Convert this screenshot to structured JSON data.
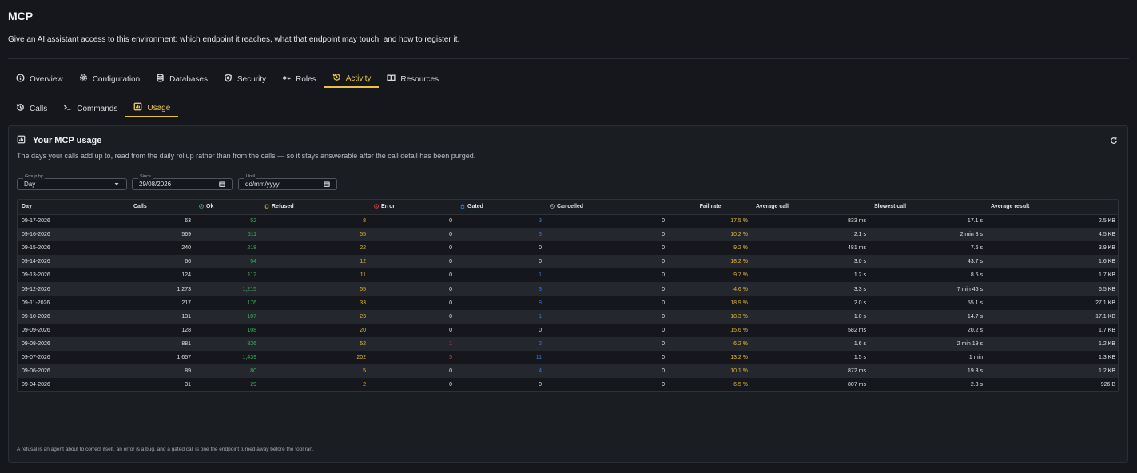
{
  "header": {
    "title": "MCP",
    "description": "Give an AI assistant access to this environment: which endpoint it reaches, what that endpoint may touch, and how to register it."
  },
  "tabs": [
    {
      "label": "Overview",
      "icon": "info-icon",
      "active": false
    },
    {
      "label": "Configuration",
      "icon": "gear-icon",
      "active": false
    },
    {
      "label": "Databases",
      "icon": "database-icon",
      "active": false
    },
    {
      "label": "Security",
      "icon": "shield-icon",
      "active": false
    },
    {
      "label": "Roles",
      "icon": "roles-icon",
      "active": false
    },
    {
      "label": "Activity",
      "icon": "history-icon",
      "active": true
    },
    {
      "label": "Resources",
      "icon": "book-icon",
      "active": false
    }
  ],
  "subtabs": [
    {
      "label": "Calls",
      "icon": "history-icon",
      "active": false
    },
    {
      "label": "Commands",
      "icon": "terminal-icon",
      "active": false
    },
    {
      "label": "Usage",
      "icon": "chart-icon",
      "active": true
    }
  ],
  "panel": {
    "title": "Your MCP usage",
    "description": "The days your calls add up to, read from the daily rollup rather than from the calls — so it stays answerable after the call detail has been purged.",
    "footnote": "A refusal is an agent about to correct itself, an error is a bug, and a gated call is one the endpoint turned away before the tool ran."
  },
  "filters": {
    "group_by": {
      "label": "Group by",
      "value": "Day"
    },
    "since": {
      "label": "Since",
      "value": "29/08/2026"
    },
    "until": {
      "label": "Until",
      "value": "dd/mm/yyyy"
    }
  },
  "colors": {
    "accent": "#e8c34a",
    "ok": "#3fae5d",
    "refused": "#e2b73c",
    "error": "#d04444",
    "gated": "#3b78d0"
  },
  "table": {
    "columns": [
      "Day",
      "Calls",
      "Ok",
      "Refused",
      "Error",
      "Gated",
      "Cancelled",
      "Fail rate",
      "Average call",
      "Slowest call",
      "Average result"
    ],
    "rows": [
      [
        "09-17-2026",
        "63",
        "52",
        "8",
        "0",
        "3",
        "0",
        "17.5 %",
        "833 ms",
        "17.1 s",
        "2.5 KB"
      ],
      [
        "09-16-2026",
        "569",
        "511",
        "55",
        "0",
        "3",
        "0",
        "10.2 %",
        "2.1 s",
        "2 min 8 s",
        "4.5 KB"
      ],
      [
        "09-15-2026",
        "240",
        "218",
        "22",
        "0",
        "0",
        "0",
        "9.2 %",
        "481 ms",
        "7.6 s",
        "3.9 KB"
      ],
      [
        "09-14-2026",
        "66",
        "54",
        "12",
        "0",
        "0",
        "0",
        "18.2 %",
        "3.0 s",
        "43.7 s",
        "1.6 KB"
      ],
      [
        "09-13-2026",
        "124",
        "112",
        "11",
        "0",
        "1",
        "0",
        "9.7 %",
        "1.2 s",
        "8.6 s",
        "1.7 KB"
      ],
      [
        "09-12-2026",
        "1,273",
        "1,215",
        "55",
        "0",
        "3",
        "0",
        "4.6 %",
        "3.3 s",
        "7 min 46 s",
        "6.5 KB"
      ],
      [
        "09-11-2026",
        "217",
        "176",
        "33",
        "0",
        "8",
        "0",
        "18.9 %",
        "2.0 s",
        "55.1 s",
        "27.1 KB"
      ],
      [
        "09-10-2026",
        "131",
        "107",
        "23",
        "0",
        "1",
        "0",
        "18.3 %",
        "1.0 s",
        "14.7 s",
        "17.1 KB"
      ],
      [
        "09-09-2026",
        "128",
        "108",
        "20",
        "0",
        "0",
        "0",
        "15.6 %",
        "582 ms",
        "20.2 s",
        "1.7 KB"
      ],
      [
        "09-08-2026",
        "881",
        "826",
        "52",
        "1",
        "2",
        "0",
        "6.2 %",
        "1.6 s",
        "2 min 19 s",
        "1.2 KB"
      ],
      [
        "09-07-2026",
        "1,657",
        "1,439",
        "202",
        "5",
        "11",
        "0",
        "13.2 %",
        "1.5 s",
        "1 min",
        "1.3 KB"
      ],
      [
        "09-06-2026",
        "89",
        "80",
        "5",
        "0",
        "4",
        "0",
        "10.1 %",
        "872 ms",
        "19.3 s",
        "1.2 KB"
      ],
      [
        "09-04-2026",
        "31",
        "29",
        "2",
        "0",
        "0",
        "0",
        "6.5 %",
        "807 ms",
        "2.3 s",
        "926 B"
      ]
    ]
  }
}
